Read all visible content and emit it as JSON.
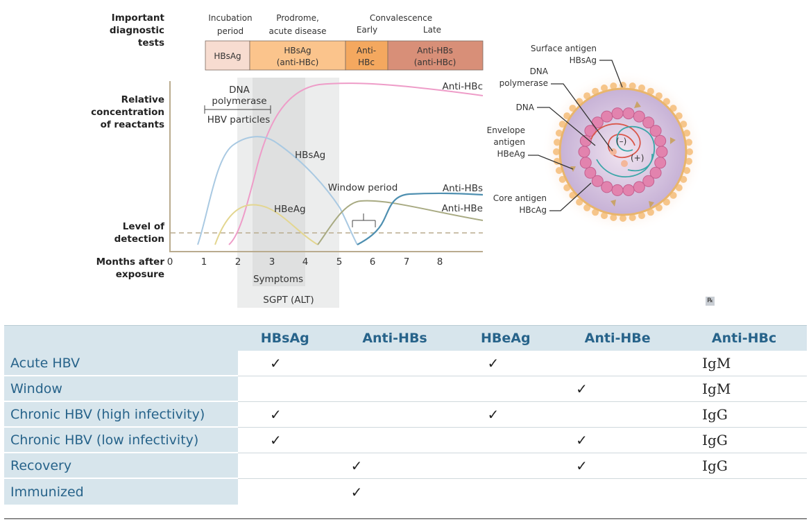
{
  "figure": {
    "left_labels": {
      "tests": [
        "Important",
        "diagnostic",
        "tests"
      ],
      "concentration": [
        "Relative",
        "concentration",
        "of reactants"
      ],
      "detection": [
        "Level of",
        "detection"
      ],
      "months": [
        "Months after",
        "exposure"
      ]
    },
    "phases": {
      "incubation": [
        "Incubation",
        "period"
      ],
      "prodrome": [
        "Prodrome,",
        "acute disease"
      ],
      "convalescence": "Convalescence",
      "early": "Early",
      "late": "Late"
    },
    "test_boxes": [
      {
        "lines": [
          "HBsAg"
        ],
        "color": "#f7dcd0"
      },
      {
        "lines": [
          "HBsAg",
          "(anti-HBc)"
        ],
        "color": "#fbc48c"
      },
      {
        "lines": [
          "Anti-",
          "HBc"
        ],
        "color": "#f4a85f"
      },
      {
        "lines": [
          "Anti-HBs",
          "(anti-HBc)"
        ],
        "color": "#d88f78"
      }
    ],
    "x_ticks": [
      "0",
      "1",
      "2",
      "3",
      "4",
      "5",
      "6",
      "7",
      "8"
    ],
    "curve_labels": {
      "anti_hbc": "Anti-HBc",
      "hbsag": "HBsAg",
      "hbeag": "HBeAg",
      "anti_hbs": "Anti-HBs",
      "anti_hbe": "Anti-HBe",
      "dna_pol": [
        "DNA",
        "polymerase"
      ],
      "hbv_particles": "HBV particles",
      "window": "Window period",
      "symptoms": "Symptoms",
      "sgpt": "SGPT (ALT)"
    },
    "colors": {
      "anti_hbc": "#ee9cc8",
      "hbsag": "#a9c9e2",
      "hbeag": "#e3d690",
      "anti_hbs": "#4e8fb0",
      "anti_hbe": "#a8aa82",
      "axis": "#b9ab8e",
      "shade": "#e6e7e7"
    },
    "virion_labels": {
      "surface": [
        "Surface antigen",
        "HBsAg"
      ],
      "dna_pol": [
        "DNA",
        "polymerase"
      ],
      "dna": "DNA",
      "envelope": [
        "Envelope",
        "antigen",
        "HBeAg"
      ],
      "core": [
        "Core antigen",
        "HBcAg"
      ],
      "minus": "(–)",
      "plus": "(+)"
    },
    "rx": "℞"
  },
  "table": {
    "headers": [
      "",
      "HBsAg",
      "Anti-HBs",
      "HBeAg",
      "Anti-HBe",
      "Anti-HBc"
    ],
    "rows": [
      {
        "label": "Acute HBV",
        "cells": [
          "✓",
          "",
          "✓",
          "",
          "IgM"
        ]
      },
      {
        "label": "Window",
        "cells": [
          "",
          "",
          "",
          "✓",
          "IgM"
        ]
      },
      {
        "label": "Chronic HBV (high infectivity)",
        "cells": [
          "✓",
          "",
          "✓",
          "",
          "IgG"
        ]
      },
      {
        "label": "Chronic HBV (low infectivity)",
        "cells": [
          "✓",
          "",
          "",
          "✓",
          "IgG"
        ]
      },
      {
        "label": "Recovery",
        "cells": [
          "",
          "✓",
          "",
          "✓",
          "IgG"
        ]
      },
      {
        "label": "Immunized",
        "cells": [
          "",
          "✓",
          "",
          "",
          ""
        ]
      }
    ],
    "header_bg": "#d7e5ec",
    "header_text": "#27638a"
  }
}
